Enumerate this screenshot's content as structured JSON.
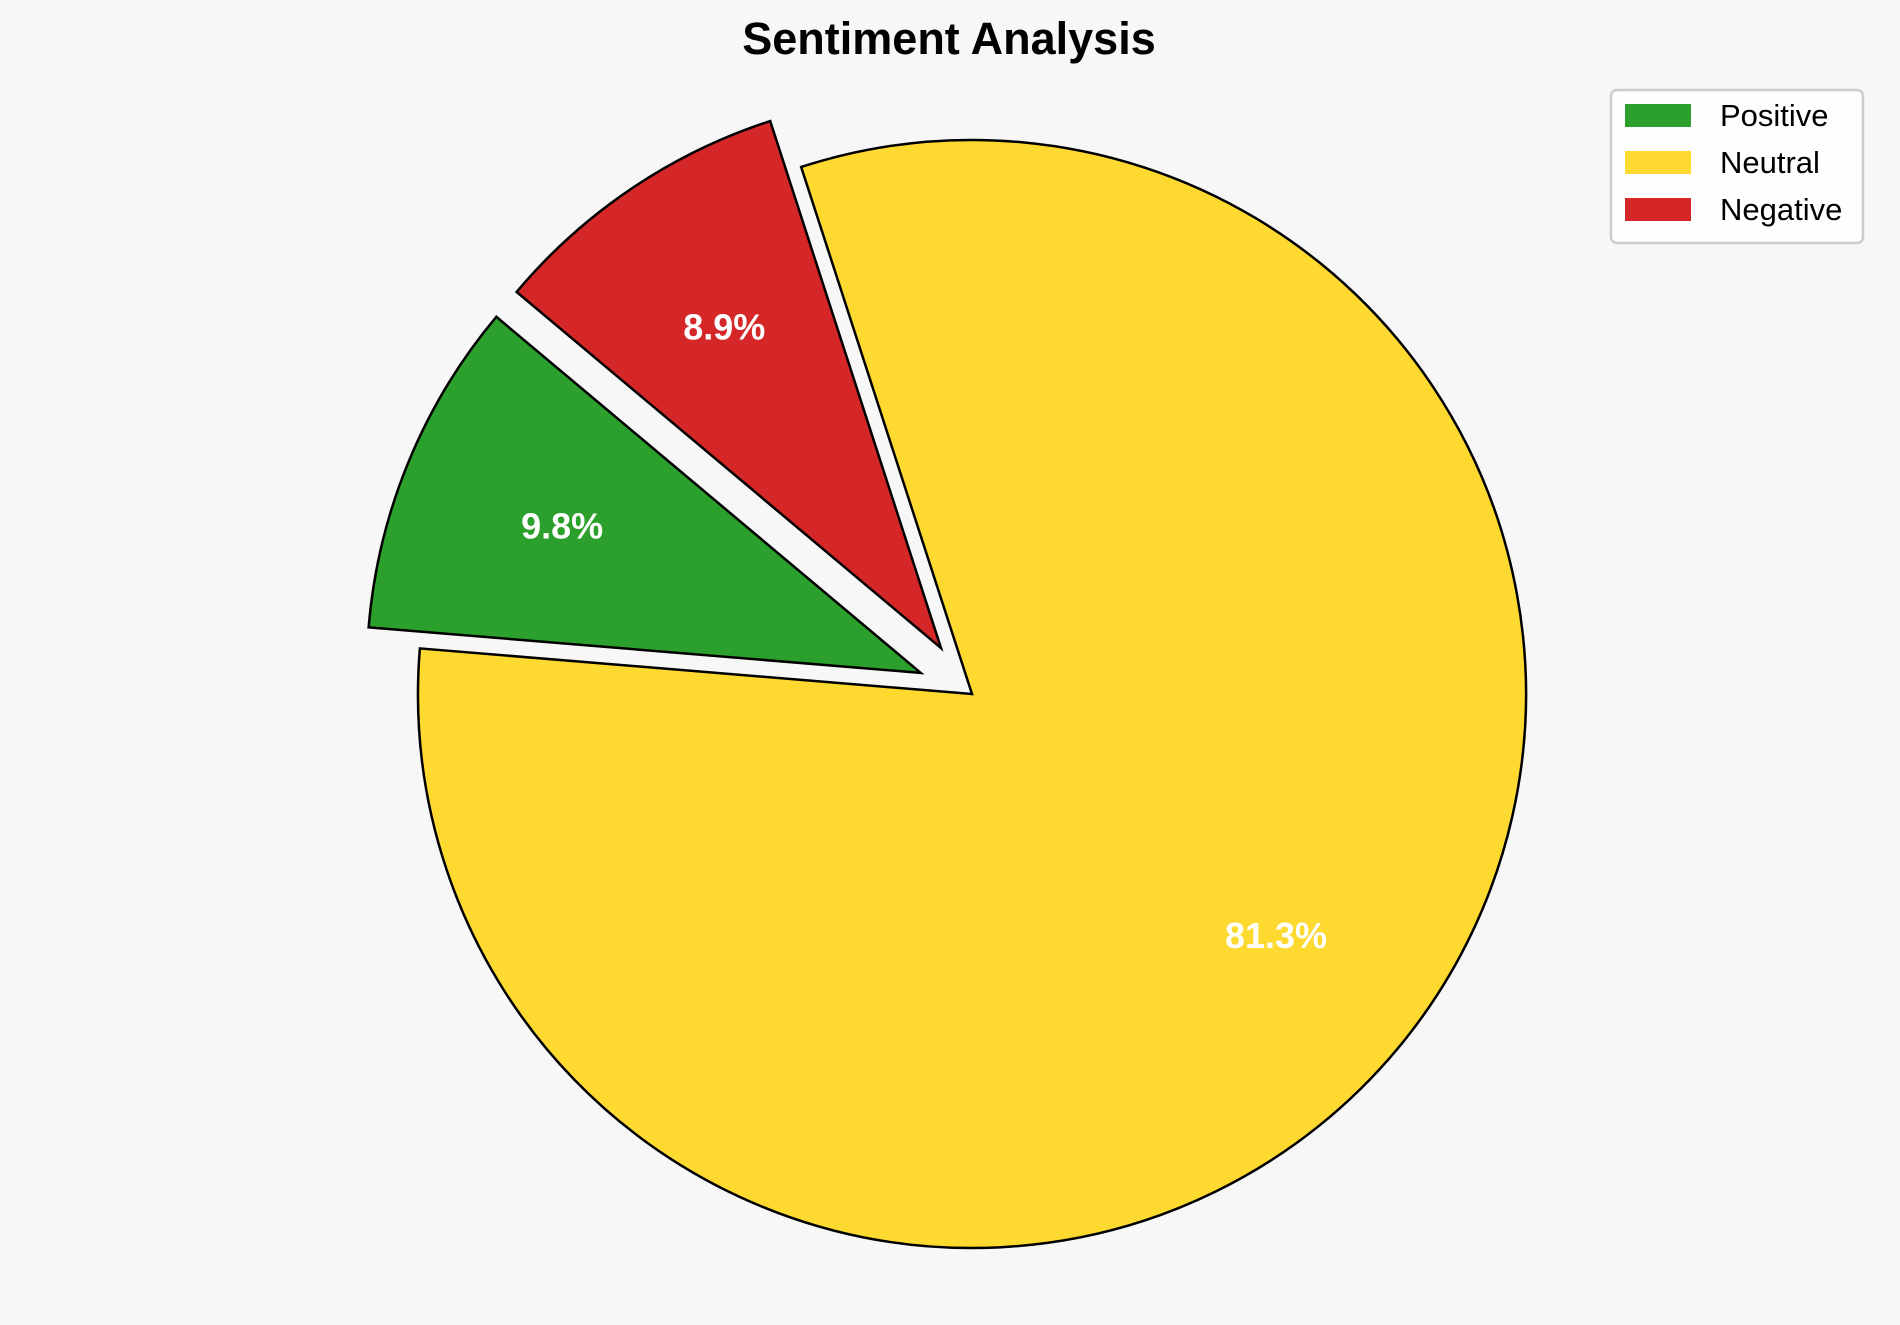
{
  "chart_data": {
    "type": "pie",
    "title": "Sentiment Analysis",
    "categories": [
      "Positive",
      "Neutral",
      "Negative"
    ],
    "values": [
      9.8,
      81.3,
      8.9
    ],
    "labels": [
      "9.8%",
      "81.3%",
      "8.9%"
    ],
    "colors": [
      "#2ca02c",
      "#fed930",
      "#d62728"
    ],
    "exploded": [
      true,
      false,
      true
    ],
    "start_angle_deg": 140,
    "direction": "counterclockwise",
    "legend_position": "top-right",
    "legend": [
      "Positive",
      "Neutral",
      "Negative"
    ]
  }
}
